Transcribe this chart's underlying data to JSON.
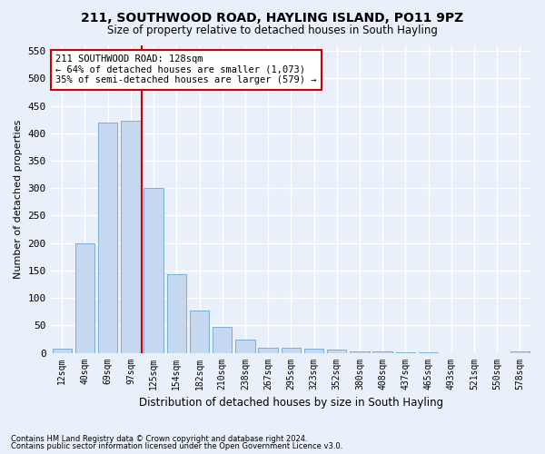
{
  "title_line1": "211, SOUTHWOOD ROAD, HAYLING ISLAND, PO11 9PZ",
  "title_line2": "Size of property relative to detached houses in South Hayling",
  "xlabel": "Distribution of detached houses by size in South Hayling",
  "ylabel": "Number of detached properties",
  "footnote1": "Contains HM Land Registry data © Crown copyright and database right 2024.",
  "footnote2": "Contains public sector information licensed under the Open Government Licence v3.0.",
  "categories": [
    "12sqm",
    "40sqm",
    "69sqm",
    "97sqm",
    "125sqm",
    "154sqm",
    "182sqm",
    "210sqm",
    "238sqm",
    "267sqm",
    "295sqm",
    "323sqm",
    "352sqm",
    "380sqm",
    "408sqm",
    "437sqm",
    "465sqm",
    "493sqm",
    "521sqm",
    "550sqm",
    "578sqm"
  ],
  "values": [
    8,
    200,
    420,
    422,
    300,
    143,
    77,
    48,
    24,
    10,
    10,
    8,
    6,
    3,
    2,
    1,
    1,
    0,
    0,
    0,
    2
  ],
  "bar_color": "#c5d8f0",
  "bar_edge_color": "#7bafd4",
  "background_color": "#eaf0f9",
  "grid_color": "#ffffff",
  "red_line_color": "#cc0000",
  "annotation_text": "211 SOUTHWOOD ROAD: 128sqm\n← 64% of detached houses are smaller (1,073)\n35% of semi-detached houses are larger (579) →",
  "annotation_box_color": "#ffffff",
  "annotation_box_edge": "#cc0000",
  "ylim": [
    0,
    560
  ],
  "yticks": [
    0,
    50,
    100,
    150,
    200,
    250,
    300,
    350,
    400,
    450,
    500,
    550
  ],
  "red_line_index": 4
}
